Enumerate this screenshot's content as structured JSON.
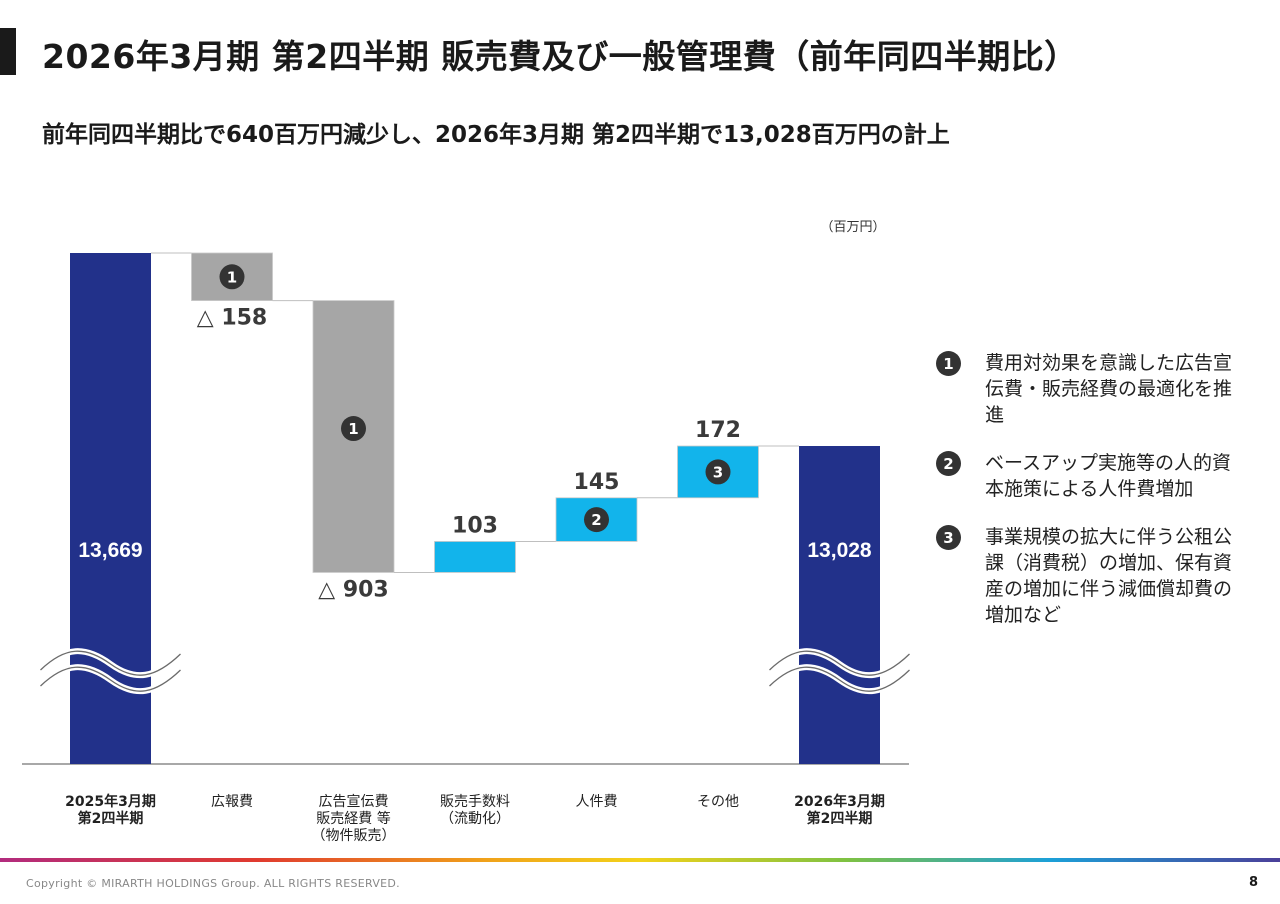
{
  "page": {
    "title": "2026年3月期 第2四半期 販売費及び一般管理費（前年同四半期比）",
    "subtitle": "前年同四半期比で640百万円減少し、2026年3月期 第2四半期で13,028百万円の計上",
    "page_number": "8",
    "copyright": "Copyright © MIRARTH HOLDINGS Group. ALL RIGHTS RESERVED."
  },
  "colors": {
    "total": "#22318a",
    "decrease": "#a6a6a6",
    "increase": "#12b4eb",
    "badge": "#333333"
  },
  "legend": [
    {
      "badge": "1",
      "text": "費用対効果を意識した広告宣伝費・販売経費の最適化を推進"
    },
    {
      "badge": "2",
      "text": "ベースアップ実施等の人的資本施策による人件費増加"
    },
    {
      "badge": "3",
      "text": "事業規模の拡大に伴う公租公課（消費税）の増加、保有資産の増加に伴う減価償却費の増加など"
    }
  ],
  "chart_data": {
    "type": "waterfall",
    "unit_label": "（百万円）",
    "axis_break": true,
    "categories": [
      [
        "2025年3月期",
        "第2四半期"
      ],
      [
        "広報費"
      ],
      [
        "広告宣伝費",
        "販売経費 等",
        "（物件販売）"
      ],
      [
        "販売手数料",
        "（流動化）"
      ],
      [
        "人件費"
      ],
      [
        "その他"
      ],
      [
        "2026年3月期",
        "第2四半期"
      ]
    ],
    "steps": [
      {
        "kind": "total",
        "value": 13669,
        "label": "13,669"
      },
      {
        "kind": "decrease",
        "value": -158,
        "label": "△ 158",
        "badge": "1"
      },
      {
        "kind": "decrease",
        "value": -903,
        "label": "△ 903",
        "badge": "1"
      },
      {
        "kind": "increase",
        "value": 103,
        "label": "103"
      },
      {
        "kind": "increase",
        "value": 145,
        "label": "145",
        "badge": "2"
      },
      {
        "kind": "increase",
        "value": 172,
        "label": "172",
        "badge": "3"
      },
      {
        "kind": "total",
        "value": 13028,
        "label": "13,028"
      }
    ]
  }
}
